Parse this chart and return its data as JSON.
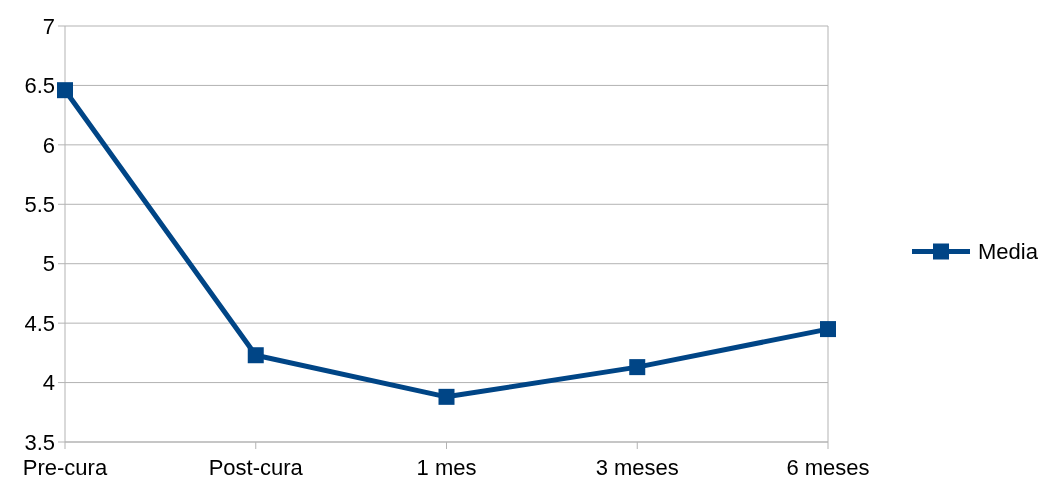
{
  "chart_data": {
    "type": "line",
    "categories": [
      "Pre-cura",
      "Post-cura",
      "1 mes",
      "3 meses",
      "6 meses"
    ],
    "series": [
      {
        "name": "Media",
        "color": "#004586",
        "values": [
          6.46,
          4.23,
          3.88,
          4.13,
          4.45
        ]
      }
    ],
    "ylim": [
      3.5,
      7
    ],
    "yticks": [
      3.5,
      4,
      4.5,
      5,
      5.5,
      6,
      6.5,
      7
    ],
    "grid": "y",
    "legend": "right",
    "marker": "square",
    "line_style": "solid"
  }
}
